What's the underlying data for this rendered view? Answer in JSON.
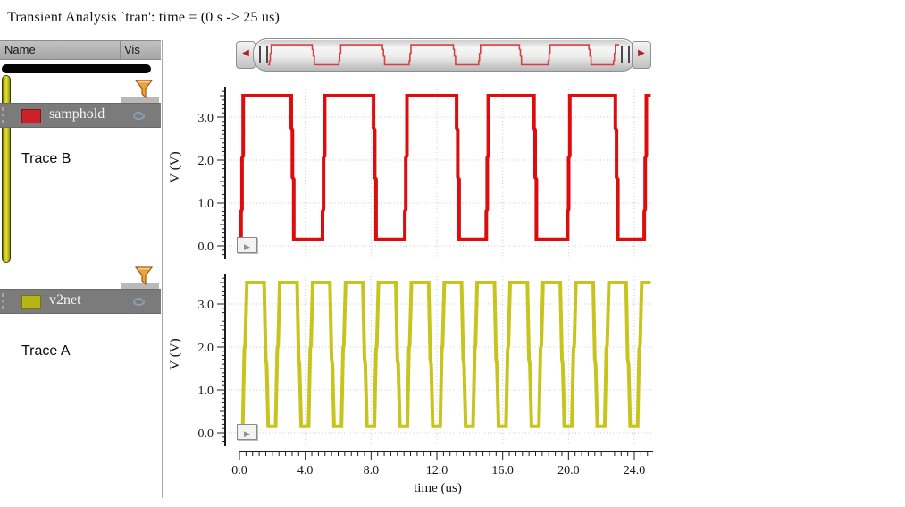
{
  "window": {
    "title": "Transient Analysis `tran': time = (0 s -> 25 us)"
  },
  "sidebar": {
    "header": {
      "name_col": "Name",
      "vis_col": "Vis"
    },
    "traces": [
      {
        "name": "samphold",
        "swatch_color": "#cc2128",
        "section_label": "Trace B"
      },
      {
        "name": "v2net",
        "swatch_color": "#b5b516",
        "section_label": "Trace A"
      }
    ],
    "scrollbars": {
      "horizontal_thumb_color": "#050505",
      "vertical_thumb_color": "#c9c91c"
    }
  },
  "overview_scrollbar": {
    "left_arrow_glyph": "◀",
    "right_arrow_glyph": "▶",
    "shows_series": "samphold"
  },
  "panel_controls": {
    "play_glyph": "▶"
  },
  "icons": {
    "filter_color": "#eda23f",
    "refresh_color": "#8c9cb4"
  },
  "chart_data": [
    {
      "type": "line",
      "panel": "top",
      "title": "",
      "ylabel": "V (V)",
      "xlabel": "time (us)",
      "xlim": [
        0,
        25
      ],
      "ylim": [
        -0.3,
        3.7
      ],
      "ytick_values": [
        0,
        1,
        2,
        3
      ],
      "ytick_labels": [
        "0.0",
        "1.0",
        "2.0",
        "3.0"
      ],
      "xtick_values": [
        0,
        4,
        8,
        12,
        16,
        20,
        24
      ],
      "xtick_labels": [
        "0.0",
        "4.0",
        "8.0",
        "12.0",
        "16.0",
        "20.0",
        "24.0"
      ],
      "grid": true,
      "legend": false,
      "series": [
        {
          "name": "samphold",
          "color": "#dd0d0d",
          "shape": "square-wave",
          "low": 0.15,
          "high": 3.5,
          "rise_times": [
            0.1,
            5.05,
            10.05,
            15.0,
            19.95,
            24.6
          ],
          "fall_times": [
            3.15,
            8.15,
            13.2,
            17.9,
            22.85
          ],
          "rise_profile": [
            [
              0,
              0.15
            ],
            [
              0,
              0.8
            ],
            [
              0.06,
              0.85
            ],
            [
              0.06,
              2.05
            ],
            [
              0.13,
              2.1
            ],
            [
              0.13,
              3.5
            ]
          ],
          "fall_profile": [
            [
              0,
              3.5
            ],
            [
              0,
              2.75
            ],
            [
              0.07,
              2.7
            ],
            [
              0.07,
              1.6
            ],
            [
              0.15,
              1.55
            ],
            [
              0.15,
              0.15
            ]
          ]
        }
      ]
    },
    {
      "type": "line",
      "panel": "bottom",
      "title": "",
      "ylabel": "V (V)",
      "xlabel": "time (us)",
      "xlim": [
        0,
        25
      ],
      "ylim": [
        -0.3,
        3.7
      ],
      "ytick_values": [
        0,
        1,
        2,
        3
      ],
      "ytick_labels": [
        "0.0",
        "1.0",
        "2.0",
        "3.0"
      ],
      "xtick_values": [
        0,
        4,
        8,
        12,
        16,
        20,
        24
      ],
      "xtick_labels": [
        "0.0",
        "4.0",
        "8.0",
        "12.0",
        "16.0",
        "20.0",
        "24.0"
      ],
      "grid": true,
      "legend": false,
      "series": [
        {
          "name": "v2net",
          "color": "#c8c41e",
          "shape": "square-wave",
          "low": 0.15,
          "high": 3.5,
          "rise_times": [
            0.2,
            2.2,
            4.2,
            6.2,
            8.2,
            10.2,
            12.2,
            14.2,
            16.2,
            18.2,
            20.2,
            22.2,
            24.2
          ],
          "fall_times": [
            1.5,
            3.5,
            5.5,
            7.5,
            9.5,
            11.5,
            13.5,
            15.5,
            17.5,
            19.5,
            21.5,
            23.5
          ],
          "rise_profile": [
            [
              0,
              0.15
            ],
            [
              0.1,
              1.95
            ],
            [
              0.15,
              2.05
            ],
            [
              0.25,
              3.5
            ]
          ],
          "fall_profile": [
            [
              0,
              3.5
            ],
            [
              0.1,
              1.7
            ],
            [
              0.15,
              1.6
            ],
            [
              0.25,
              0.15
            ]
          ]
        }
      ]
    }
  ]
}
